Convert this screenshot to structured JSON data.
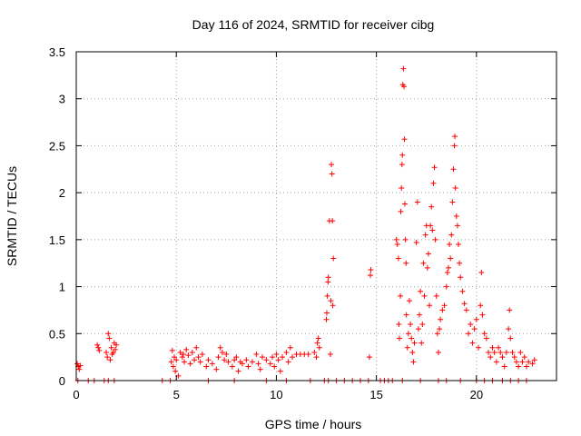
{
  "chart_data": {
    "type": "scatter",
    "title": "Day 116 of 2024, SRMTID for receiver cibg",
    "xlabel": "GPS time / hours",
    "ylabel": "SRMTID / TECUs",
    "xlim": [
      0,
      24
    ],
    "ylim": [
      0,
      3.5
    ],
    "xticks": [
      0,
      5,
      10,
      15,
      20
    ],
    "yticks": [
      0,
      0.5,
      1,
      1.5,
      2,
      2.5,
      3,
      3.5
    ],
    "xtick_labels": [
      "0",
      "5",
      "10",
      "15",
      "20"
    ],
    "ytick_labels": [
      "0",
      "0.5",
      "1",
      "1.5",
      "2",
      "2.5",
      "3",
      "3.5"
    ],
    "grid": true,
    "marker": "+",
    "series": [
      {
        "name": "SRMTID",
        "color": "#ff0000",
        "points": [
          [
            0.05,
            0.18
          ],
          [
            0.1,
            0.15
          ],
          [
            0.15,
            0.12
          ],
          [
            0.2,
            0.16
          ],
          [
            0.08,
            0.0
          ],
          [
            0.6,
            0.0
          ],
          [
            0.9,
            0.0
          ],
          [
            1.05,
            0.38
          ],
          [
            1.1,
            0.35
          ],
          [
            1.15,
            0.32
          ],
          [
            1.5,
            0.3
          ],
          [
            1.55,
            0.25
          ],
          [
            1.6,
            0.5
          ],
          [
            1.65,
            0.45
          ],
          [
            1.7,
            0.22
          ],
          [
            1.75,
            0.35
          ],
          [
            1.8,
            0.28
          ],
          [
            1.85,
            0.3
          ],
          [
            1.9,
            0.4
          ],
          [
            1.95,
            0.33
          ],
          [
            2.0,
            0.38
          ],
          [
            1.4,
            0.0
          ],
          [
            1.6,
            0.0
          ],
          [
            1.9,
            0.0
          ],
          [
            4.3,
            0.0
          ],
          [
            4.7,
            0.0
          ],
          [
            4.75,
            0.2
          ],
          [
            4.8,
            0.32
          ],
          [
            4.85,
            0.15
          ],
          [
            4.9,
            0.25
          ],
          [
            4.95,
            0.1
          ],
          [
            5.0,
            0.22
          ],
          [
            5.1,
            0.05
          ],
          [
            5.2,
            0.3
          ],
          [
            5.3,
            0.25
          ],
          [
            5.35,
            0.28
          ],
          [
            5.4,
            0.2
          ],
          [
            5.5,
            0.33
          ],
          [
            5.6,
            0.27
          ],
          [
            5.7,
            0.18
          ],
          [
            5.8,
            0.3
          ],
          [
            5.9,
            0.22
          ],
          [
            6.0,
            0.35
          ],
          [
            6.1,
            0.25
          ],
          [
            6.2,
            0.2
          ],
          [
            6.3,
            0.28
          ],
          [
            6.5,
            0.15
          ],
          [
            6.6,
            0.22
          ],
          [
            6.8,
            0.18
          ],
          [
            7.0,
            0.12
          ],
          [
            7.1,
            0.25
          ],
          [
            7.2,
            0.35
          ],
          [
            7.3,
            0.3
          ],
          [
            7.4,
            0.22
          ],
          [
            7.5,
            0.28
          ],
          [
            7.6,
            0.2
          ],
          [
            7.8,
            0.15
          ],
          [
            7.9,
            0.22
          ],
          [
            8.0,
            0.25
          ],
          [
            8.1,
            0.1
          ],
          [
            8.2,
            0.2
          ],
          [
            8.3,
            0.18
          ],
          [
            8.5,
            0.22
          ],
          [
            8.6,
            0.15
          ],
          [
            8.8,
            0.2
          ],
          [
            9.0,
            0.28
          ],
          [
            9.1,
            0.18
          ],
          [
            9.2,
            0.12
          ],
          [
            9.3,
            0.25
          ],
          [
            9.5,
            0.22
          ],
          [
            9.7,
            0.18
          ],
          [
            9.8,
            0.25
          ],
          [
            9.9,
            0.15
          ],
          [
            10.0,
            0.28
          ],
          [
            10.1,
            0.22
          ],
          [
            10.2,
            0.1
          ],
          [
            10.3,
            0.25
          ],
          [
            10.5,
            0.3
          ],
          [
            10.6,
            0.2
          ],
          [
            10.7,
            0.35
          ],
          [
            10.8,
            0.25
          ],
          [
            11.0,
            0.28
          ],
          [
            11.2,
            0.28
          ],
          [
            11.4,
            0.28
          ],
          [
            11.6,
            0.28
          ],
          [
            11.9,
            0.3
          ],
          [
            12.0,
            0.25
          ],
          [
            12.05,
            0.4
          ],
          [
            12.1,
            0.45
          ],
          [
            12.15,
            0.35
          ],
          [
            12.5,
            0.65
          ],
          [
            12.52,
            0.72
          ],
          [
            12.55,
            0.9
          ],
          [
            12.58,
            1.05
          ],
          [
            12.6,
            1.1
          ],
          [
            12.65,
            1.7
          ],
          [
            12.7,
            0.28
          ],
          [
            12.72,
            0.85
          ],
          [
            12.75,
            2.3
          ],
          [
            12.78,
            2.2
          ],
          [
            12.8,
            1.7
          ],
          [
            12.82,
            0.8
          ],
          [
            12.85,
            1.3
          ],
          [
            6.6,
            0.0
          ],
          [
            7.9,
            0.0
          ],
          [
            9.5,
            0.0
          ],
          [
            10.5,
            0.0
          ],
          [
            11.7,
            0.0
          ],
          [
            12.4,
            0.0
          ],
          [
            12.6,
            0.0
          ],
          [
            13.0,
            0.0
          ],
          [
            13.4,
            0.0
          ],
          [
            13.8,
            0.0
          ],
          [
            14.2,
            0.0
          ],
          [
            14.6,
            0.0
          ],
          [
            14.65,
            0.25
          ],
          [
            14.7,
            1.12
          ],
          [
            14.72,
            1.18
          ],
          [
            15.2,
            0.0
          ],
          [
            15.4,
            0.0
          ],
          [
            15.6,
            0.0
          ],
          [
            15.8,
            0.0
          ],
          [
            16.0,
            1.5
          ],
          [
            16.05,
            1.45
          ],
          [
            16.1,
            1.3
          ],
          [
            16.12,
            0.6
          ],
          [
            16.15,
            0.45
          ],
          [
            16.2,
            0.9
          ],
          [
            16.22,
            1.8
          ],
          [
            16.25,
            2.05
          ],
          [
            16.28,
            2.3
          ],
          [
            16.3,
            2.4
          ],
          [
            16.32,
            3.15
          ],
          [
            16.35,
            3.32
          ],
          [
            16.38,
            3.13
          ],
          [
            16.4,
            2.57
          ],
          [
            16.42,
            1.88
          ],
          [
            16.45,
            1.5
          ],
          [
            16.48,
            1.25
          ],
          [
            16.5,
            0.7
          ],
          [
            16.55,
            0.35
          ],
          [
            16.6,
            0.5
          ],
          [
            16.65,
            0.85
          ],
          [
            16.7,
            0.6
          ],
          [
            16.75,
            0.45
          ],
          [
            16.8,
            0.3
          ],
          [
            16.85,
            0.2
          ],
          [
            16.9,
            0.4
          ],
          [
            17.0,
            1.47
          ],
          [
            17.05,
            1.9
          ],
          [
            17.1,
            0.55
          ],
          [
            17.15,
            0.7
          ],
          [
            17.2,
            0.95
          ],
          [
            17.25,
            0.4
          ],
          [
            17.3,
            0.6
          ],
          [
            17.35,
            1.25
          ],
          [
            17.4,
            0.9
          ],
          [
            17.45,
            1.55
          ],
          [
            17.5,
            1.65
          ],
          [
            17.55,
            1.2
          ],
          [
            17.6,
            1.35
          ],
          [
            17.65,
            0.8
          ],
          [
            17.7,
            1.65
          ],
          [
            17.75,
            1.85
          ],
          [
            17.8,
            1.6
          ],
          [
            17.85,
            2.1
          ],
          [
            17.9,
            2.27
          ],
          [
            17.95,
            1.5
          ],
          [
            18.0,
            0.9
          ],
          [
            18.05,
            0.5
          ],
          [
            18.1,
            0.3
          ],
          [
            18.15,
            0.55
          ],
          [
            18.2,
            0.65
          ],
          [
            18.3,
            0.75
          ],
          [
            18.4,
            0.8
          ],
          [
            18.5,
            1.0
          ],
          [
            18.55,
            1.15
          ],
          [
            18.6,
            1.2
          ],
          [
            18.65,
            1.45
          ],
          [
            18.7,
            1.3
          ],
          [
            18.75,
            1.55
          ],
          [
            18.8,
            1.9
          ],
          [
            18.85,
            2.25
          ],
          [
            18.9,
            2.5
          ],
          [
            18.92,
            2.6
          ],
          [
            18.95,
            2.05
          ],
          [
            19.0,
            1.75
          ],
          [
            19.05,
            1.65
          ],
          [
            19.1,
            1.45
          ],
          [
            19.15,
            1.25
          ],
          [
            19.2,
            1.1
          ],
          [
            19.3,
            0.95
          ],
          [
            19.4,
            0.82
          ],
          [
            19.5,
            0.75
          ],
          [
            19.6,
            0.5
          ],
          [
            19.7,
            0.6
          ],
          [
            19.8,
            0.4
          ],
          [
            19.9,
            0.55
          ],
          [
            20.0,
            0.65
          ],
          [
            20.1,
            0.35
          ],
          [
            20.2,
            0.8
          ],
          [
            20.25,
            1.15
          ],
          [
            20.3,
            0.7
          ],
          [
            20.4,
            0.5
          ],
          [
            20.5,
            0.45
          ],
          [
            20.6,
            0.3
          ],
          [
            20.7,
            0.25
          ],
          [
            20.8,
            0.35
          ],
          [
            20.9,
            0.3
          ],
          [
            21.0,
            0.2
          ],
          [
            21.1,
            0.35
          ],
          [
            21.2,
            0.3
          ],
          [
            21.3,
            0.25
          ],
          [
            21.4,
            0.15
          ],
          [
            21.5,
            0.3
          ],
          [
            21.6,
            0.55
          ],
          [
            21.65,
            0.75
          ],
          [
            21.7,
            0.45
          ],
          [
            21.8,
            0.3
          ],
          [
            21.9,
            0.25
          ],
          [
            22.0,
            0.2
          ],
          [
            22.1,
            0.15
          ],
          [
            22.2,
            0.3
          ],
          [
            22.3,
            0.2
          ],
          [
            22.4,
            0.25
          ],
          [
            22.5,
            0.15
          ],
          [
            22.6,
            0.2
          ],
          [
            22.8,
            0.18
          ],
          [
            22.9,
            0.22
          ],
          [
            16.3,
            0.0
          ],
          [
            17.2,
            0.0
          ],
          [
            18.1,
            0.0
          ],
          [
            18.5,
            0.0
          ],
          [
            19.2,
            0.0
          ],
          [
            20.0,
            0.0
          ],
          [
            20.4,
            0.0
          ],
          [
            20.8,
            0.0
          ],
          [
            21.3,
            0.0
          ],
          [
            21.7,
            0.0
          ],
          [
            22.1,
            0.0
          ],
          [
            22.5,
            0.0
          ]
        ]
      }
    ]
  }
}
